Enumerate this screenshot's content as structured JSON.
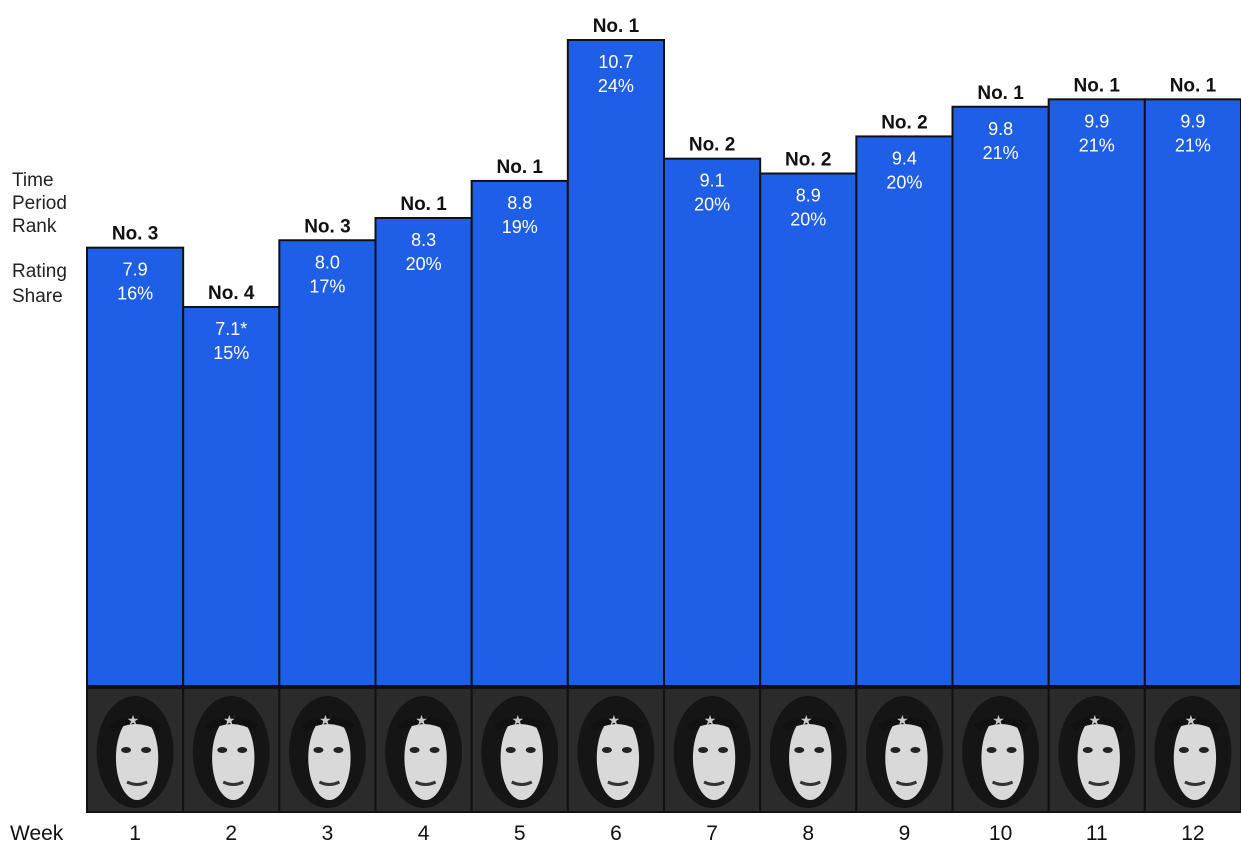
{
  "chart_data": {
    "type": "bar",
    "categories": [
      "1",
      "2",
      "3",
      "4",
      "5",
      "6",
      "7",
      "8",
      "9",
      "10",
      "11",
      "12"
    ],
    "row_labels": {
      "rank_heading": [
        "Time",
        "Period",
        "Rank"
      ],
      "rating_label": "Rating",
      "share_label": "Share",
      "week_label": "Week"
    },
    "series": [
      {
        "values": [
          7.9,
          7.1,
          8.0,
          8.3,
          8.8,
          10.7,
          9.1,
          8.9,
          9.4,
          9.8,
          9.9,
          9.9
        ],
        "value_labels": [
          "7.9",
          "7.1*",
          "8.0",
          "8.3",
          "8.8",
          "10.7",
          "9.1",
          "8.9",
          "9.4",
          "9.8",
          "9.9",
          "9.9"
        ],
        "share": [
          "16%",
          "15%",
          "17%",
          "20%",
          "19%",
          "24%",
          "20%",
          "20%",
          "20%",
          "21%",
          "21%",
          "21%"
        ],
        "rank": [
          "No. 3",
          "No. 4",
          "No. 3",
          "No. 1",
          "No. 1",
          "No. 1",
          "No. 2",
          "No. 2",
          "No. 2",
          "No. 1",
          "No. 1",
          "No. 1"
        ]
      }
    ],
    "colors": {
      "bar": "#1f5ee6",
      "bar_edge": "#111111",
      "photo_strip": "#2b2b2b"
    },
    "grid": false,
    "legend": "none"
  }
}
